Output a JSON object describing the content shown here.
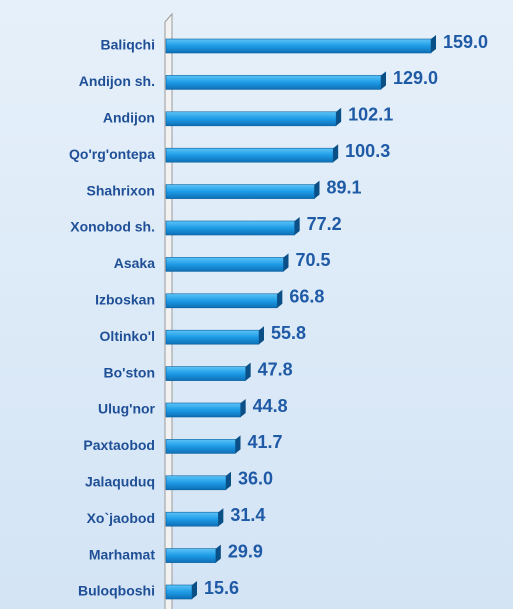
{
  "chart_data": {
    "type": "bar",
    "orientation": "horizontal",
    "categories": [
      "Baliqchi",
      "Andijon sh.",
      "Andijon",
      "Qo'rg'ontepa",
      "Shahrixon",
      "Xonobod sh.",
      "Asaka",
      "Izboskan",
      "Oltinko'l",
      "Bo'ston",
      "Ulug'nor",
      "Paxtaobod",
      "Jalaquduq",
      "Xo`jaobod",
      "Marhamat",
      "Buloqboshi"
    ],
    "values": [
      159.0,
      129.0,
      102.1,
      100.3,
      89.1,
      77.2,
      70.5,
      66.8,
      55.8,
      47.8,
      44.8,
      41.7,
      36.0,
      31.4,
      29.9,
      15.6
    ],
    "value_labels": [
      "159.0",
      "129.0",
      "102.1",
      "100.3",
      "89.1",
      "77.2",
      "70.5",
      "66.8",
      "55.8",
      "47.8",
      "44.8",
      "41.7",
      "36.0",
      "31.4",
      "29.9",
      "15.6"
    ],
    "color": "#1e9be6"
  }
}
